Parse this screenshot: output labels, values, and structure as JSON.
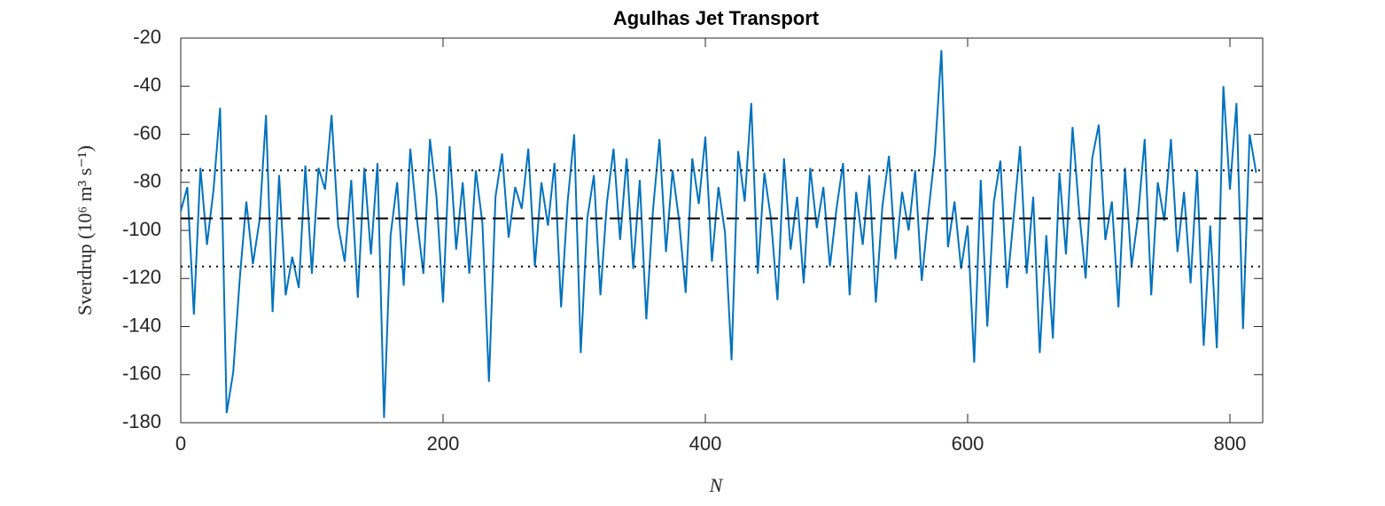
{
  "chart_data": {
    "type": "line",
    "title": "Agulhas Jet Transport",
    "xlabel": "N",
    "ylabel": "Sverdrup (10⁶ m³ s⁻¹)",
    "x": [
      0,
      5,
      10,
      15,
      20,
      25,
      30,
      35,
      40,
      45,
      50,
      55,
      60,
      65,
      70,
      75,
      80,
      85,
      90,
      95,
      100,
      105,
      110,
      115,
      120,
      125,
      130,
      135,
      140,
      145,
      150,
      155,
      160,
      165,
      170,
      175,
      180,
      185,
      190,
      195,
      200,
      205,
      210,
      215,
      220,
      225,
      230,
      235,
      240,
      245,
      250,
      255,
      260,
      265,
      270,
      275,
      280,
      285,
      290,
      295,
      300,
      305,
      310,
      315,
      320,
      325,
      330,
      335,
      340,
      345,
      350,
      355,
      360,
      365,
      370,
      375,
      380,
      385,
      390,
      395,
      400,
      405,
      410,
      415,
      420,
      425,
      430,
      435,
      440,
      445,
      450,
      455,
      460,
      465,
      470,
      475,
      480,
      485,
      490,
      495,
      500,
      505,
      510,
      515,
      520,
      525,
      530,
      535,
      540,
      545,
      550,
      555,
      560,
      565,
      570,
      575,
      580,
      585,
      590,
      595,
      600,
      605,
      610,
      615,
      620,
      625,
      630,
      635,
      640,
      645,
      650,
      655,
      660,
      665,
      670,
      675,
      680,
      685,
      690,
      695,
      700,
      705,
      710,
      715,
      720,
      725,
      730,
      735,
      740,
      745,
      750,
      755,
      760,
      765,
      770,
      775,
      780,
      785,
      790,
      795,
      800,
      805,
      810,
      815,
      820
    ],
    "series": [
      {
        "name": "transport",
        "color": "#0072bd",
        "values": [
          -92,
          -82,
          -135,
          -74,
          -106,
          -83,
          -49,
          -176,
          -159,
          -120,
          -88,
          -114,
          -96,
          -52,
          -134,
          -77,
          -127,
          -111,
          -124,
          -73,
          -118,
          -74,
          -83,
          -52,
          -98,
          -113,
          -79,
          -128,
          -74,
          -110,
          -72,
          -178,
          -102,
          -80,
          -123,
          -66,
          -95,
          -118,
          -62,
          -86,
          -130,
          -65,
          -108,
          -80,
          -118,
          -75,
          -97,
          -163,
          -86,
          -68,
          -103,
          -82,
          -91,
          -66,
          -115,
          -80,
          -98,
          -72,
          -132,
          -88,
          -60,
          -151,
          -95,
          -77,
          -127,
          -88,
          -66,
          -104,
          -70,
          -116,
          -79,
          -137,
          -92,
          -62,
          -109,
          -75,
          -96,
          -126,
          -70,
          -89,
          -61,
          -113,
          -82,
          -101,
          -154,
          -67,
          -88,
          -47,
          -118,
          -76,
          -95,
          -129,
          -70,
          -108,
          -86,
          -122,
          -74,
          -99,
          -82,
          -115,
          -91,
          -72,
          -127,
          -84,
          -106,
          -77,
          -130,
          -90,
          -69,
          -112,
          -84,
          -100,
          -75,
          -121,
          -93,
          -68,
          -25,
          -107,
          -88,
          -116,
          -98,
          -155,
          -79,
          -140,
          -88,
          -71,
          -124,
          -95,
          -65,
          -118,
          -86,
          -151,
          -102,
          -145,
          -76,
          -110,
          -57,
          -92,
          -120,
          -70,
          -56,
          -104,
          -88,
          -132,
          -74,
          -115,
          -94,
          -62,
          -127,
          -80,
          -96,
          -62,
          -109,
          -84,
          -122,
          -75,
          -148,
          -98,
          -149,
          -40,
          -83,
          -47,
          -141,
          -60,
          -76
        ]
      }
    ],
    "hlines": [
      {
        "value": -95,
        "style": "dashed"
      },
      {
        "value": -75,
        "style": "dotted"
      },
      {
        "value": -115,
        "style": "dotted"
      }
    ],
    "xlim": [
      0,
      825
    ],
    "xticks": [
      0,
      200,
      400,
      600,
      800
    ],
    "ylim": [
      -180,
      -20
    ],
    "yticks": [
      -180,
      -160,
      -140,
      -120,
      -100,
      -80,
      -60,
      -40,
      -20
    ]
  }
}
